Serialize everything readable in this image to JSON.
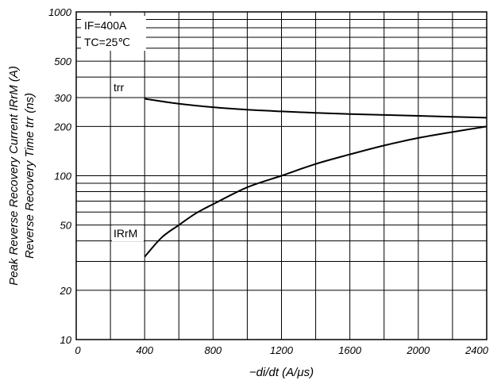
{
  "chart_data": {
    "type": "line",
    "title": "",
    "xlabel": "−di/dt (A/μs)",
    "ylabel_1": "Peak Reverse Recovery Current IRrM (A)",
    "ylabel_2": "Reverse Recovery Time trr (ns)",
    "x_scale": "linear",
    "y_scale": "log",
    "xlim": [
      0,
      2400
    ],
    "ylim": [
      10,
      1000
    ],
    "grid": true,
    "x_ticks": [
      "0",
      "400",
      "800",
      "1200",
      "1600",
      "2000",
      "2400"
    ],
    "y_ticks": [
      "10",
      "20",
      "50",
      "100",
      "200",
      "300",
      "500",
      "1000"
    ],
    "conditions": [
      "IF=400A",
      "TC=25℃"
    ],
    "series": [
      {
        "name": "trr",
        "x": [
          400,
          600,
          800,
          1000,
          1200,
          1400,
          1600,
          1800,
          2000,
          2200,
          2400
        ],
        "y": [
          295,
          275,
          262,
          253,
          247,
          242,
          238,
          235,
          232,
          229,
          226
        ]
      },
      {
        "name": "IRrM",
        "x": [
          400,
          500,
          600,
          700,
          800,
          1000,
          1200,
          1400,
          1600,
          1800,
          2000,
          2200,
          2400
        ],
        "y": [
          32,
          42,
          50,
          59,
          67,
          85,
          100,
          118,
          135,
          153,
          170,
          185,
          200
        ]
      }
    ]
  }
}
